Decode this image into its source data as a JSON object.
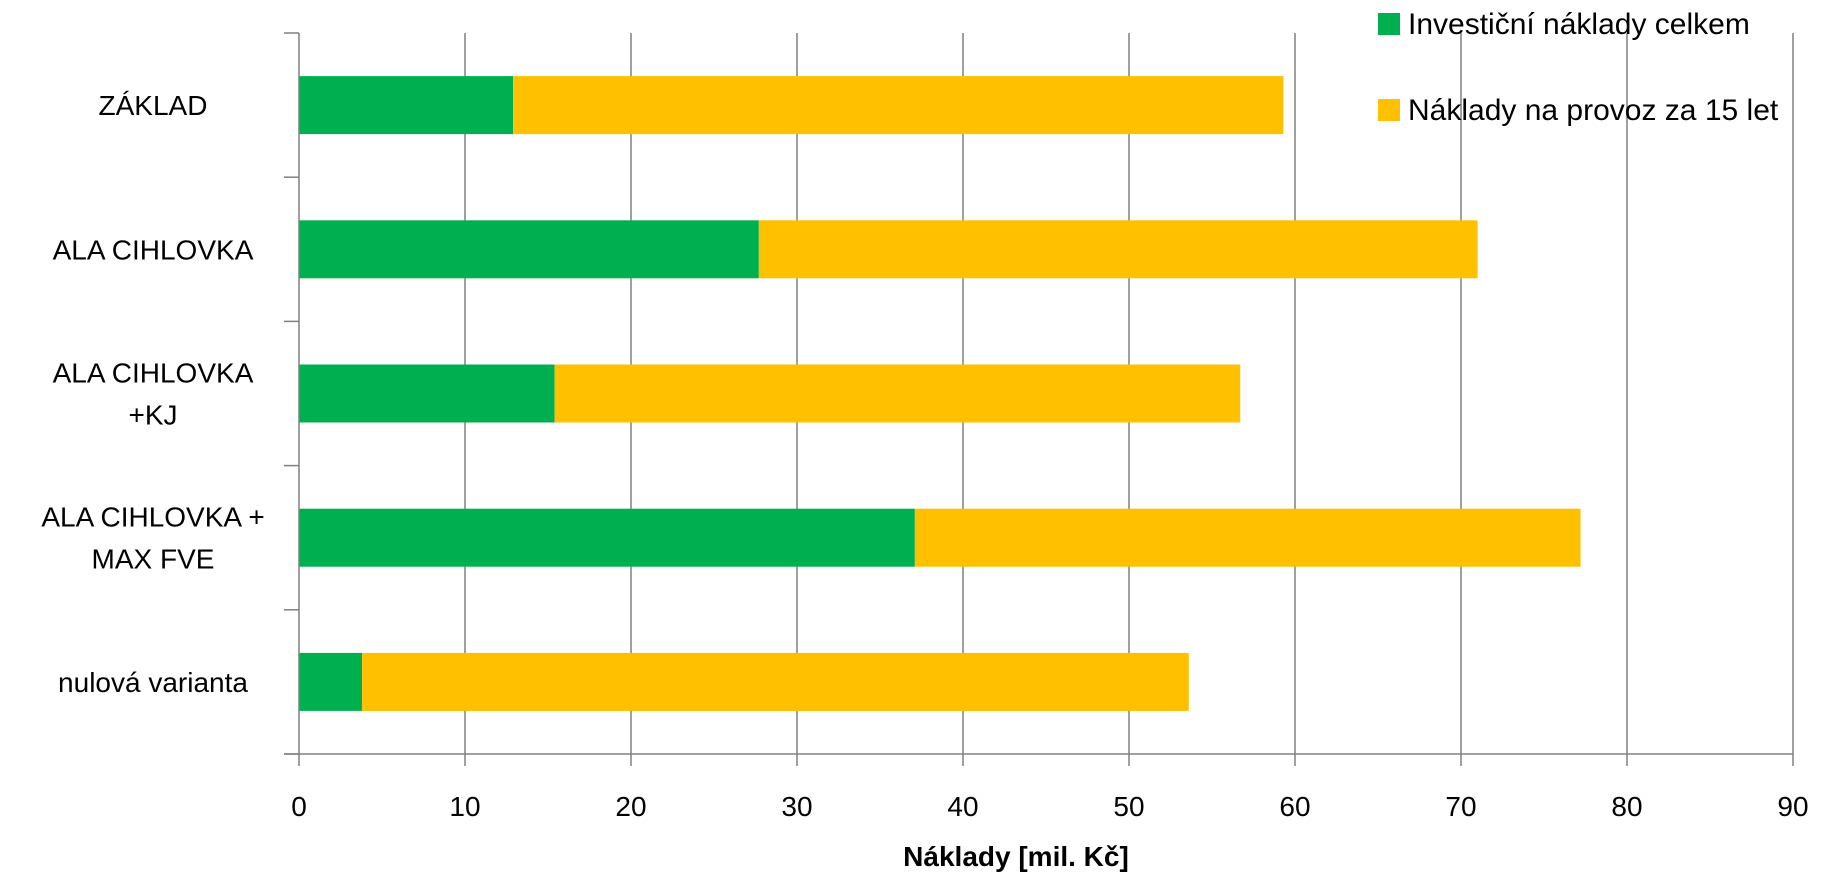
{
  "chart_data": {
    "type": "bar",
    "orientation": "horizontal",
    "stacked": true,
    "xlabel": "Náklady [mil. Kč]",
    "xlim": [
      0,
      90
    ],
    "xticks": [
      0,
      10,
      20,
      30,
      40,
      50,
      60,
      70,
      80,
      90
    ],
    "grid": "vertical",
    "legend_position": "top-right",
    "categories": [
      [
        "ZÁKLAD"
      ],
      [
        "ALA CIHLOVKA"
      ],
      [
        "ALA CIHLOVKA",
        "+KJ"
      ],
      [
        "ALA CIHLOVKA +",
        "MAX FVE"
      ],
      [
        "nulová varianta"
      ]
    ],
    "series": [
      {
        "name": "Investiční náklady celkem",
        "color": "#00B050",
        "values": [
          12.9,
          27.7,
          15.4,
          37.1,
          3.8
        ]
      },
      {
        "name": "Náklady na provoz za 15 let",
        "color": "#FFC000",
        "values": [
          46.4,
          43.3,
          41.3,
          40.1,
          49.8
        ]
      }
    ]
  }
}
